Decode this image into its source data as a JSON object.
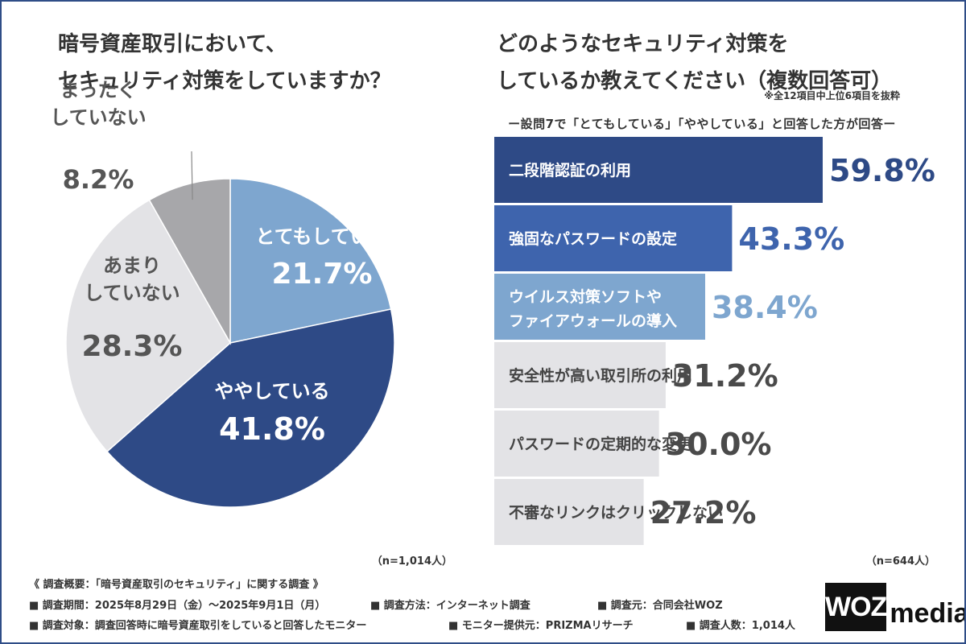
{
  "left_question": {
    "line1": "暗号資産取引において、",
    "line2": "セキュリティ対策をしていますか？"
  },
  "right_question": {
    "line1": "どのようなセキュリティ対策を",
    "line2": "しているか教えてください（複数回答可）",
    "note": "※全12項目中上位6項目を抜粋",
    "subheading": "ー設問7で「とてもしている」「ややしている」と回答した方が回答ー"
  },
  "n_left": "（n=1,014人）",
  "n_right": "（n=644人）",
  "chart_data": [
    {
      "type": "pie",
      "start_angle_deg": 0,
      "direction": "clockwise",
      "slices": [
        {
          "label_lines": [
            "とてもしている"
          ],
          "value": 21.7,
          "value_label": "21.7%",
          "color": "#7ea6cf",
          "text_color": "#ffffff"
        },
        {
          "label_lines": [
            "ややしている"
          ],
          "value": 41.8,
          "value_label": "41.8%",
          "color": "#2e4a86",
          "text_color": "#ffffff"
        },
        {
          "label_lines": [
            "あまり",
            "していない"
          ],
          "value": 28.3,
          "value_label": "28.3%",
          "color": "#e3e3e6",
          "text_color": "#555555"
        },
        {
          "label_lines": [
            "まったく",
            "していない"
          ],
          "value": 8.2,
          "value_label": "8.2%",
          "color": "#a7a7aa",
          "text_color": "#555555"
        }
      ]
    },
    {
      "type": "bar",
      "orientation": "horizontal",
      "xlim": [
        0,
        59.8
      ],
      "bars": [
        {
          "label_lines": [
            "二段階認証の利用"
          ],
          "value": 59.8,
          "value_label": "59.8%",
          "color": "#2e4a86",
          "value_color": "#2e4a86",
          "label_color": "#ffffff"
        },
        {
          "label_lines": [
            "強固なパスワードの設定"
          ],
          "value": 43.3,
          "value_label": "43.3%",
          "color": "#3e64ad",
          "value_color": "#3e64ad",
          "label_color": "#ffffff"
        },
        {
          "label_lines": [
            "ウイルス対策ソフトや",
            "ファイアウォールの導入"
          ],
          "value": 38.4,
          "value_label": "38.4%",
          "color": "#7ea6cf",
          "value_color": "#7ea6cf",
          "label_color": "#ffffff"
        },
        {
          "label_lines": [
            "安全性が高い取引所の利用"
          ],
          "value": 31.2,
          "value_label": "31.2%",
          "color": "#e3e3e6",
          "value_color": "#4a4a4a",
          "label_color": "#444444"
        },
        {
          "label_lines": [
            "パスワードの定期的な変更"
          ],
          "value": 30.0,
          "value_label": "30.0%",
          "color": "#e3e3e6",
          "value_color": "#4a4a4a",
          "label_color": "#444444"
        },
        {
          "label_lines": [
            "不審なリンクはクリックしない"
          ],
          "value": 27.2,
          "value_label": "27.2%",
          "color": "#e3e3e6",
          "value_color": "#4a4a4a",
          "label_color": "#444444"
        }
      ]
    }
  ],
  "survey": {
    "title": "《 調査概要：「暗号資産取引のセキュリティ」に関する調査 》",
    "period": "■ 調査期間：2025年8月29日（金）〜2025年9月1日（月）",
    "method": "■ 調査方法：インターネット調査",
    "source": "■ 調査元：合同会社WOZ",
    "target": "■ 調査対象：調査回答時に暗号資産取引をしていると回答したモニター",
    "provider": "■ モニター提供元：PRIZMAリサーチ",
    "count": "■ 調査人数：1,014人"
  },
  "logo": {
    "part1": "WOZ",
    "part2": "media"
  }
}
